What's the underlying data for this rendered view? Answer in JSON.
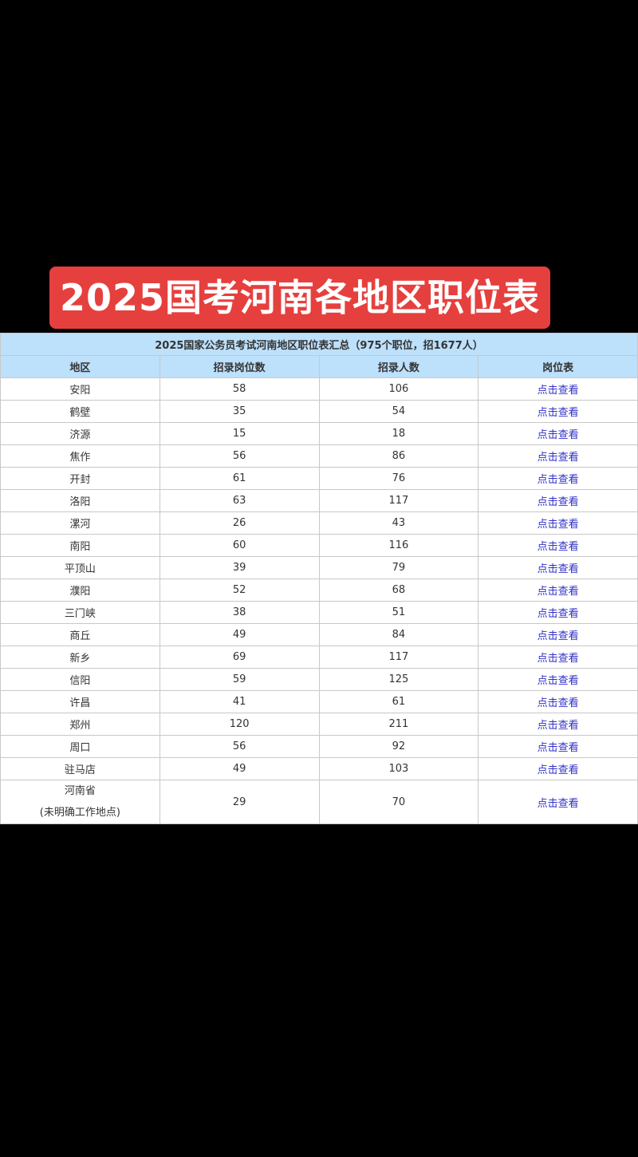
{
  "banner_title": "2025国考河南各地区职位表",
  "table": {
    "caption": "2025国家公务员考试河南地区职位表汇总（975个职位，招1677人）",
    "headers": [
      "地区",
      "招录岗位数",
      "招录人数",
      "岗位表"
    ],
    "link_label": "点击查看",
    "rows": [
      {
        "region": "安阳",
        "positions": "58",
        "people": "106"
      },
      {
        "region": "鹤壁",
        "positions": "35",
        "people": "54"
      },
      {
        "region": "济源",
        "positions": "15",
        "people": "18"
      },
      {
        "region": "焦作",
        "positions": "56",
        "people": "86"
      },
      {
        "region": "开封",
        "positions": "61",
        "people": "76"
      },
      {
        "region": "洛阳",
        "positions": "63",
        "people": "117"
      },
      {
        "region": "漯河",
        "positions": "26",
        "people": "43"
      },
      {
        "region": "南阳",
        "positions": "60",
        "people": "116"
      },
      {
        "region": "平顶山",
        "positions": "39",
        "people": "79"
      },
      {
        "region": "濮阳",
        "positions": "52",
        "people": "68"
      },
      {
        "region": "三门峡",
        "positions": "38",
        "people": "51"
      },
      {
        "region": "商丘",
        "positions": "49",
        "people": "84"
      },
      {
        "region": "新乡",
        "positions": "69",
        "people": "117"
      },
      {
        "region": "信阳",
        "positions": "59",
        "people": "125"
      },
      {
        "region": "许昌",
        "positions": "41",
        "people": "61"
      },
      {
        "region": "郑州",
        "positions": "120",
        "people": "211"
      },
      {
        "region": "周口",
        "positions": "56",
        "people": "92"
      },
      {
        "region": "驻马店",
        "positions": "49",
        "people": "103"
      }
    ],
    "last_row": {
      "region_line1": "河南省",
      "region_line2": "(未明确工作地点)",
      "positions": "29",
      "people": "70"
    }
  },
  "colors": {
    "banner": "#e5403e",
    "header_bg": "#bde0fb",
    "link": "#2f2fc8"
  }
}
